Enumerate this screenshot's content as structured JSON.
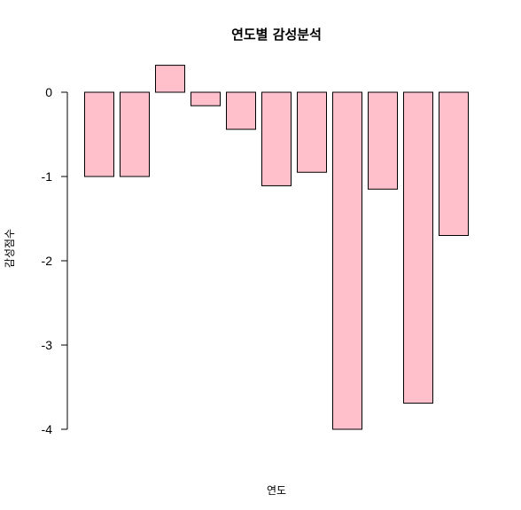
{
  "chart_data": {
    "type": "bar",
    "title": "연도별 감성분석",
    "xlabel": "연도",
    "ylabel": "감성점수",
    "values": [
      -1,
      -1,
      0.32,
      -0.16,
      -0.44,
      -1.11,
      -0.95,
      -4,
      -1.15,
      -3.69,
      -1.7
    ],
    "ylim": [
      -4,
      0.32
    ],
    "yticks": [
      0,
      -1,
      -2,
      -3,
      -4
    ],
    "ytick_labels": [
      "0",
      "-1",
      "-2",
      "-3",
      "-4"
    ],
    "grid": false,
    "legend": "none",
    "colors": {
      "bar_fill": "#ffc0cb",
      "bar_stroke": "#000000",
      "axis": "#000000"
    }
  }
}
